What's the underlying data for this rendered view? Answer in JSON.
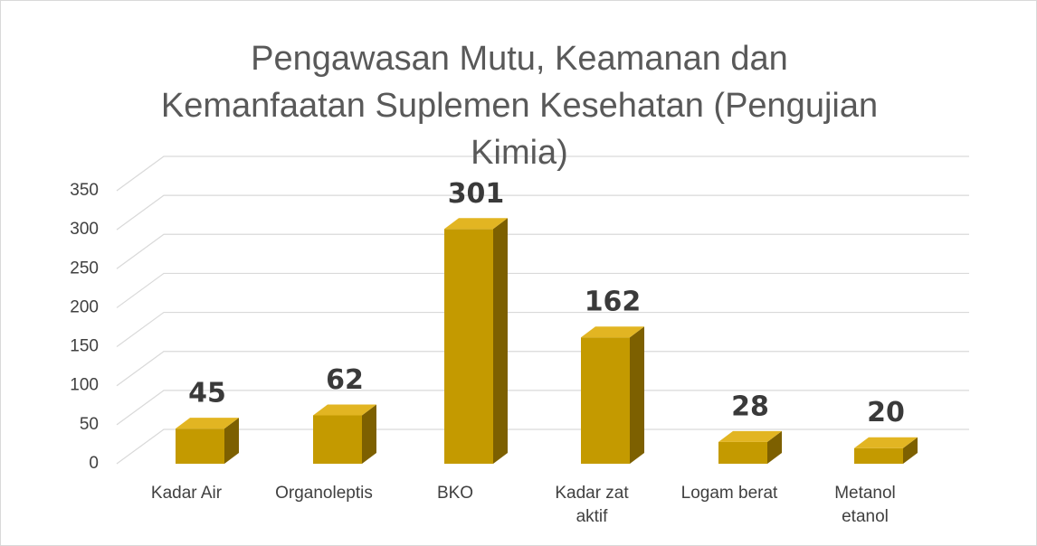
{
  "chart_data": {
    "type": "bar3d",
    "title": "Pengawasan Mutu, Keamanan dan Kemanfaatan Suplemen Kesehatan (Pengujian Kimia)",
    "categories": [
      "Kadar Air",
      "Organoleptis",
      "BKO",
      "Kadar zat aktif",
      "Logam berat",
      "Metanol etanol"
    ],
    "values": [
      45,
      62,
      301,
      162,
      28,
      20
    ],
    "color": "#c49a00",
    "ylim": [
      0,
      350
    ],
    "yticks": [
      0,
      50,
      100,
      150,
      200,
      250,
      300,
      350
    ],
    "grid": true
  }
}
